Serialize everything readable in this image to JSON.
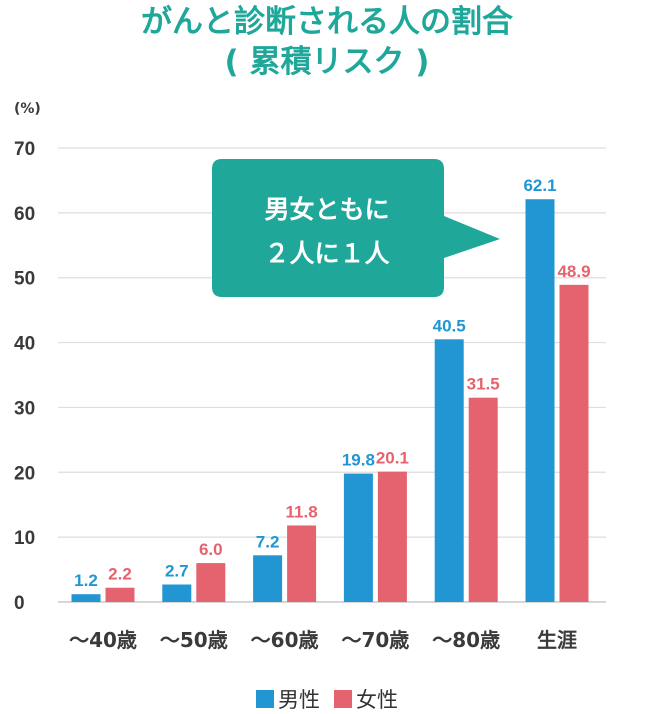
{
  "chart_data": {
    "type": "bar",
    "title": "がんと診断される人の割合",
    "subtitle": "( 累積リスク )",
    "ylabel": "(%)",
    "xlabel": "",
    "ylim": [
      0,
      70
    ],
    "yticks": [
      0,
      10,
      20,
      30,
      40,
      50,
      60,
      70
    ],
    "grid": true,
    "legend_position": "bottom",
    "categories": [
      "～40歳",
      "～50歳",
      "～60歳",
      "～70歳",
      "～80歳",
      "生涯"
    ],
    "series": [
      {
        "name": "男性",
        "color": "#2196d3",
        "values": [
          1.2,
          2.7,
          7.2,
          19.8,
          40.5,
          62.1
        ]
      },
      {
        "name": "女性",
        "color": "#e5636f",
        "values": [
          2.2,
          6.0,
          11.8,
          20.1,
          31.5,
          48.9
        ]
      }
    ],
    "annotation": {
      "lines": [
        "男女ともに",
        "２人に１人"
      ],
      "color": "#1fa79a"
    },
    "title_color": "#1fa79a"
  }
}
